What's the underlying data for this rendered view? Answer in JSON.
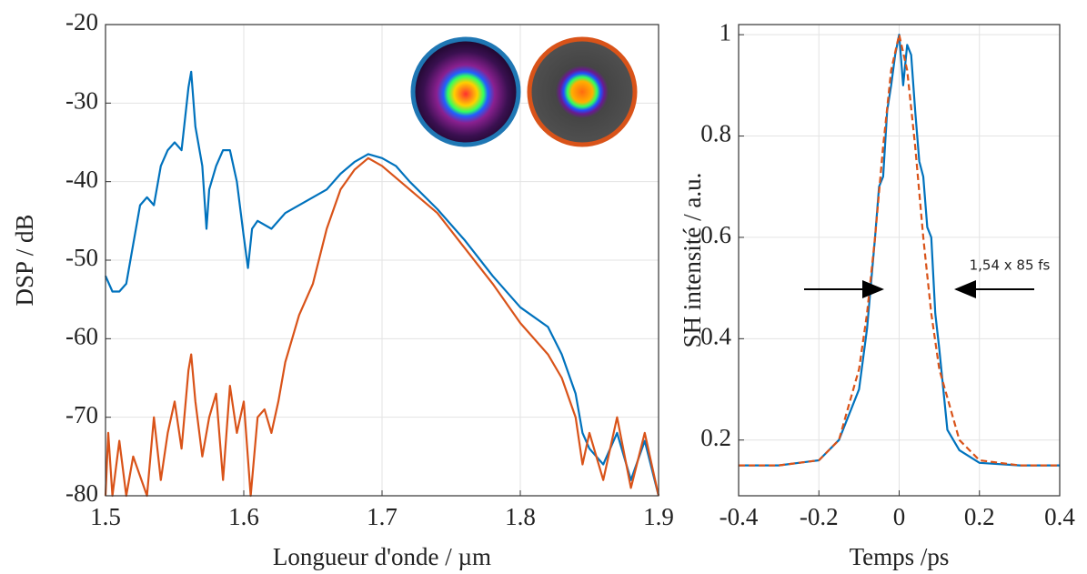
{
  "chart_data": [
    {
      "type": "line",
      "xlabel": "Longueur d'onde / µm",
      "ylabel": "DSP / dB",
      "xlim": [
        1.5,
        1.9
      ],
      "xticks": [
        1.5,
        1.6,
        1.7,
        1.8,
        1.9
      ],
      "ylim": [
        -80,
        -20
      ],
      "yticks": [
        -80,
        -70,
        -60,
        -50,
        -40,
        -30,
        -20
      ],
      "grid": true,
      "series": [
        {
          "color": "#0072bd",
          "linestyle": "solid",
          "x": [
            1.5,
            1.505,
            1.51,
            1.515,
            1.52,
            1.525,
            1.53,
            1.535,
            1.54,
            1.545,
            1.55,
            1.555,
            1.56,
            1.562,
            1.565,
            1.57,
            1.573,
            1.575,
            1.58,
            1.585,
            1.59,
            1.595,
            1.6,
            1.603,
            1.606,
            1.61,
            1.62,
            1.63,
            1.64,
            1.65,
            1.66,
            1.67,
            1.68,
            1.69,
            1.7,
            1.71,
            1.72,
            1.74,
            1.76,
            1.78,
            1.8,
            1.82,
            1.83,
            1.84,
            1.845,
            1.85,
            1.86,
            1.87,
            1.88,
            1.89,
            1.9
          ],
          "values": [
            -52,
            -54,
            -54,
            -53,
            -48,
            -43,
            -42,
            -43,
            -38,
            -36,
            -35,
            -36,
            -28,
            -26,
            -33,
            -38,
            -46,
            -41,
            -38,
            -36,
            -36,
            -40,
            -47,
            -51,
            -46,
            -45,
            -46,
            -44,
            -43,
            -42,
            -41,
            -39,
            -37.5,
            -36.5,
            -37,
            -38,
            -40,
            -43.5,
            -47.5,
            -52,
            -56,
            -58.5,
            -62,
            -67,
            -72,
            -74,
            -76,
            -72,
            -78,
            -73,
            -80
          ]
        },
        {
          "color": "#d95319",
          "linestyle": "solid",
          "x": [
            1.5,
            1.502,
            1.505,
            1.51,
            1.515,
            1.52,
            1.53,
            1.535,
            1.54,
            1.545,
            1.55,
            1.555,
            1.56,
            1.562,
            1.565,
            1.57,
            1.575,
            1.58,
            1.585,
            1.59,
            1.595,
            1.6,
            1.605,
            1.61,
            1.615,
            1.62,
            1.625,
            1.63,
            1.64,
            1.65,
            1.66,
            1.67,
            1.68,
            1.69,
            1.7,
            1.72,
            1.74,
            1.76,
            1.78,
            1.8,
            1.82,
            1.83,
            1.84,
            1.845,
            1.85,
            1.86,
            1.87,
            1.88,
            1.89,
            1.9
          ],
          "values": [
            -80,
            -72,
            -80,
            -73,
            -80,
            -75,
            -80,
            -70,
            -78,
            -72,
            -68,
            -74,
            -64,
            -62,
            -68,
            -75,
            -70,
            -67,
            -78,
            -66,
            -72,
            -68,
            -80,
            -70,
            -69,
            -72,
            -68,
            -63,
            -57,
            -53,
            -46,
            -41,
            -38.5,
            -37,
            -38,
            -41,
            -44,
            -48.5,
            -53,
            -58,
            -62,
            -65,
            -70,
            -76,
            -72,
            -78,
            -70,
            -79,
            -72,
            -80
          ]
        }
      ]
    },
    {
      "type": "line",
      "xlabel": "Temps /ps",
      "ylabel": "SH intensité / a.u.",
      "annotation": "1,54 x 85 fs",
      "xlim": [
        -0.4,
        0.4
      ],
      "xticks": [
        -0.4,
        -0.2,
        0,
        0.2,
        0.4
      ],
      "ylim": [
        0.09,
        1.02
      ],
      "yticks": [
        0.2,
        0.4,
        0.6,
        0.8,
        1
      ],
      "grid": true,
      "series": [
        {
          "color": "#0072bd",
          "linestyle": "solid",
          "x": [
            -0.4,
            -0.3,
            -0.2,
            -0.15,
            -0.1,
            -0.08,
            -0.06,
            -0.05,
            -0.04,
            -0.03,
            -0.02,
            -0.01,
            0,
            0.01,
            0.02,
            0.03,
            0.04,
            0.05,
            0.06,
            0.07,
            0.08,
            0.09,
            0.1,
            0.12,
            0.15,
            0.2,
            0.3,
            0.4
          ],
          "values": [
            0.15,
            0.15,
            0.16,
            0.2,
            0.3,
            0.42,
            0.6,
            0.7,
            0.72,
            0.85,
            0.9,
            0.96,
            1.0,
            0.9,
            0.98,
            0.96,
            0.85,
            0.75,
            0.72,
            0.62,
            0.6,
            0.45,
            0.38,
            0.22,
            0.18,
            0.155,
            0.15,
            0.15
          ]
        },
        {
          "color": "#d95319",
          "linestyle": "dashed",
          "x": [
            -0.4,
            -0.3,
            -0.2,
            -0.15,
            -0.1,
            -0.08,
            -0.06,
            -0.04,
            -0.02,
            0,
            0.02,
            0.04,
            0.06,
            0.08,
            0.1,
            0.15,
            0.2,
            0.3,
            0.4
          ],
          "values": [
            0.15,
            0.15,
            0.16,
            0.2,
            0.34,
            0.45,
            0.6,
            0.78,
            0.93,
            1.0,
            0.93,
            0.78,
            0.6,
            0.45,
            0.34,
            0.2,
            0.16,
            0.15,
            0.15
          ]
        }
      ]
    }
  ]
}
